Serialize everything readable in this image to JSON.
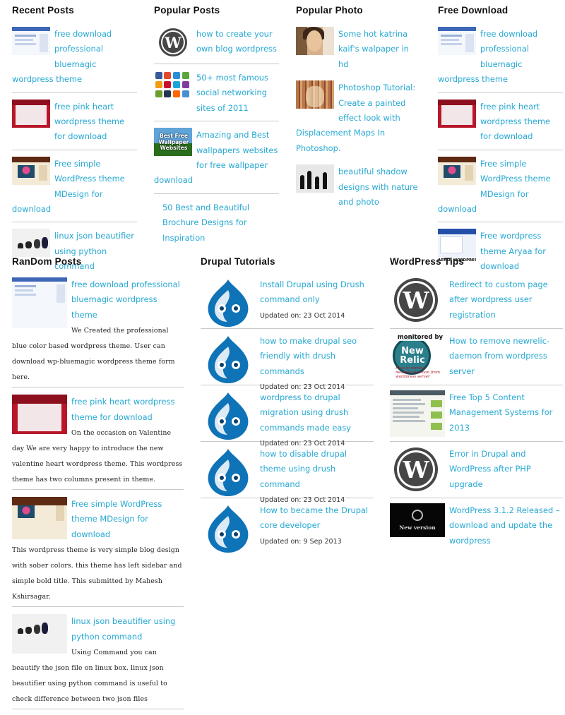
{
  "colors": {
    "link": "#27a9d3",
    "heading": "#111111",
    "divider": "#c9c9c9"
  },
  "recent_posts": {
    "title": "Recent Posts",
    "items": [
      {
        "label": "free download professional bluemagic wordpress theme",
        "thumb": "bluemagic-theme-thumbnail"
      },
      {
        "label": "free pink heart wordpress theme for download",
        "thumb": "pink-heart-theme-thumbnail"
      },
      {
        "label": "Free simple WordPress theme MDesign for download",
        "thumb": "mdesign-theme-thumbnail"
      },
      {
        "label": "linux json beautifier using python command",
        "thumb": "linux-evolution-thumbnail"
      }
    ]
  },
  "popular_posts": {
    "title": "Popular Posts",
    "items": [
      {
        "label": "how to create your own blog wordpress",
        "thumb": "wordpress-logo-icon"
      },
      {
        "label": "50+ most famous social networking sites of 2011",
        "thumb": "social-networks-thumbnail"
      },
      {
        "label": "Amazing and Best wallpapers websites for free wallpaper download",
        "thumb": "best-free-wallpaper-thumbnail",
        "thumb_text": "Best Free Wallpaper Websites"
      },
      {
        "label": "50 Best and Beautiful Brochure Designs for Inspiration",
        "thumb": ""
      }
    ]
  },
  "popular_photo": {
    "title": "Popular Photo",
    "items": [
      {
        "label": "Some hot katrina kaif's walpaper in hd",
        "thumb": "katrina-photo-thumbnail"
      },
      {
        "label": "Photoshop Tutorial: Create a painted effect look with Displacement Maps In Photoshop.",
        "thumb": "photoshop-tutorial-thumbnail"
      },
      {
        "label": "beautiful shadow designs with nature and photo",
        "thumb": "shadow-design-thumbnail"
      }
    ]
  },
  "free_download": {
    "title": "Free Download",
    "items": [
      {
        "label": "free download professional bluemagic wordpress theme",
        "thumb": "bluemagic-theme-thumbnail"
      },
      {
        "label": "free pink heart wordpress theme for download",
        "thumb": "pink-heart-theme-thumbnail"
      },
      {
        "label": "Free simple WordPress theme MDesign for download",
        "thumb": "mdesign-theme-thumbnail"
      },
      {
        "label": "Free wordpress theme Aryaa for download",
        "thumb": "aryaa-theme-thumbnail",
        "thumb_text": "ARYAA WORDPRESS THEME"
      }
    ]
  },
  "random_posts": {
    "title": "RanDom Posts",
    "items": [
      {
        "label": "free download professional bluemagic wordpress theme",
        "desc": "We Created the professional blue color based wordpress theme. User can download wp-bluemagic wordpress theme form here."
      },
      {
        "label": "free pink heart wordpress theme for download",
        "desc": "On the occasion on Valentine day We are very happy to introduce the new valentine heart wordpress theme. This wordpress theme has two columns present in theme."
      },
      {
        "label": "Free simple WordPress theme MDesign for download",
        "desc": "This wordpress theme is very simple blog design with sober colors. this theme has left sidebar and simple bold title. This submitted by Mahesh Kshirsagar."
      },
      {
        "label": "linux json beautifier using python command",
        "desc": "Using Command you can beautify the json file on linux box. linux json beautifier using python command is useful to check difference between two json files"
      }
    ]
  },
  "drupal_tutorials": {
    "title": "Drupal Tutorials",
    "items": [
      {
        "label": "Install Drupal using Drush command only",
        "updated": "Updated on: 23 Oct 2014"
      },
      {
        "label": "how to make drupal seo friendly with drush commands",
        "updated": "Updated on: 23 Oct 2014"
      },
      {
        "label": "wordpress to drupal migration using drush commands made easy",
        "updated": "Updated on: 23 Oct 2014"
      },
      {
        "label": "how to disable drupal theme using drush command",
        "updated": "Updated on: 23 Oct 2014"
      },
      {
        "label": "How to became the Drupal core developer",
        "updated": "Updated on: 9 Sep 2013"
      }
    ]
  },
  "wordpress_tips": {
    "title": "WordPress Tips",
    "items": [
      {
        "label": "Redirect to custom page after wordpress user registration",
        "thumb": "wordpress-logo-icon"
      },
      {
        "label": "How to remove newrelic-daemon from wordpress server",
        "thumb": "new-relic-thumbnail",
        "thumb_text": [
          "monitored by",
          "New Relic",
          "How to remove newrelic-daemon from wordpress server"
        ]
      },
      {
        "label": "Free Top 5 Content Management Systems for 2013",
        "thumb": "cms-screenshot-thumbnail"
      },
      {
        "label": "Error in Drupal and WordPress after PHP upgrade",
        "thumb": "wordpress-logo-icon"
      },
      {
        "label": "WordPress 3.1.2 Released – download and update the wordpress",
        "thumb": "new-version-thumbnail",
        "thumb_text": "New version"
      }
    ]
  }
}
